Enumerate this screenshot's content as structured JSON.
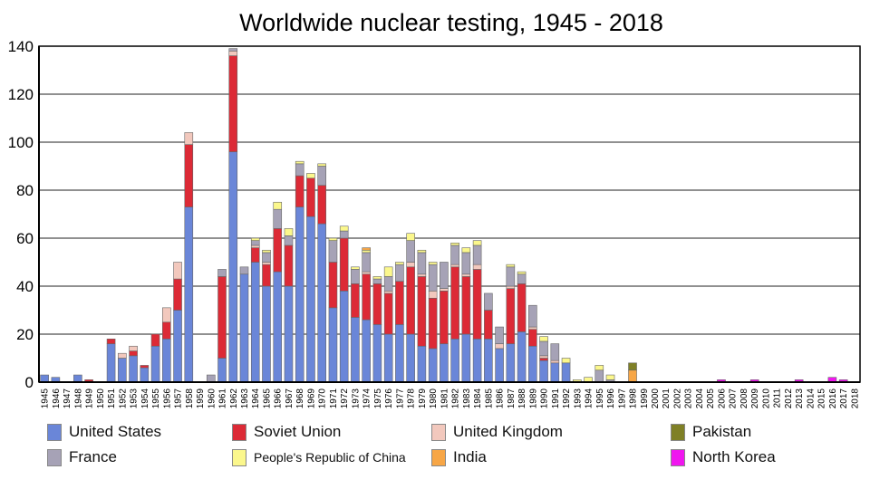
{
  "chart_data": {
    "type": "bar",
    "stacked": true,
    "title": "Worldwide nuclear testing, 1945 - 2018",
    "xlabel": "",
    "ylabel": "",
    "ylim": [
      0,
      140
    ],
    "yticks": [
      0,
      20,
      40,
      60,
      80,
      100,
      120,
      140
    ],
    "grid": true,
    "legend_position": "bottom",
    "categories": [
      "1945",
      "1946",
      "1947",
      "1948",
      "1949",
      "1950",
      "1951",
      "1952",
      "1953",
      "1954",
      "1955",
      "1956",
      "1957",
      "1958",
      "1959",
      "1960",
      "1961",
      "1962",
      "1963",
      "1964",
      "1965",
      "1966",
      "1967",
      "1968",
      "1969",
      "1970",
      "1971",
      "1972",
      "1973",
      "1974",
      "1975",
      "1976",
      "1977",
      "1978",
      "1979",
      "1980",
      "1981",
      "1982",
      "1983",
      "1984",
      "1985",
      "1986",
      "1987",
      "1988",
      "1989",
      "1990",
      "1991",
      "1992",
      "1993",
      "1994",
      "1995",
      "1996",
      "1997",
      "1998",
      "1999",
      "2000",
      "2001",
      "2002",
      "2003",
      "2004",
      "2005",
      "2006",
      "2007",
      "2008",
      "2009",
      "2010",
      "2011",
      "2012",
      "2013",
      "2014",
      "2015",
      "2016",
      "2017",
      "2018"
    ],
    "series": [
      {
        "name": "United States",
        "color": "#6a86d8",
        "values": [
          3,
          2,
          0,
          3,
          0,
          0,
          16,
          10,
          11,
          6,
          15,
          18,
          30,
          73,
          0,
          0,
          10,
          96,
          45,
          50,
          40,
          46,
          40,
          73,
          69,
          66,
          31,
          38,
          27,
          26,
          24,
          20,
          24,
          20,
          15,
          14,
          16,
          18,
          20,
          18,
          18,
          14,
          16,
          21,
          15,
          9,
          8,
          8,
          0,
          0,
          0,
          0,
          0,
          0,
          0,
          0,
          0,
          0,
          0,
          0,
          0,
          0,
          0,
          0,
          0,
          0,
          0,
          0,
          0,
          0,
          0,
          0,
          0,
          0
        ]
      },
      {
        "name": "Soviet Union",
        "color": "#dc2a36",
        "values": [
          0,
          0,
          0,
          0,
          1,
          0,
          2,
          0,
          2,
          1,
          5,
          7,
          13,
          26,
          0,
          0,
          34,
          40,
          0,
          6,
          9,
          18,
          17,
          13,
          16,
          16,
          19,
          22,
          14,
          19,
          17,
          17,
          18,
          28,
          29,
          21,
          22,
          30,
          24,
          29,
          12,
          0,
          23,
          20,
          7,
          1,
          0,
          0,
          0,
          0,
          0,
          0,
          0,
          0,
          0,
          0,
          0,
          0,
          0,
          0,
          0,
          0,
          0,
          0,
          0,
          0,
          0,
          0,
          0,
          0,
          0,
          0,
          0,
          0
        ]
      },
      {
        "name": "United Kingdom",
        "color": "#f2c8bd",
        "values": [
          0,
          0,
          0,
          0,
          0,
          0,
          0,
          2,
          2,
          0,
          0,
          6,
          7,
          5,
          0,
          0,
          0,
          2,
          0,
          1,
          1,
          0,
          0,
          0,
          0,
          0,
          0,
          0,
          0,
          1,
          0,
          1,
          0,
          2,
          1,
          3,
          1,
          1,
          1,
          2,
          0,
          2,
          1,
          0,
          1,
          1,
          1,
          0,
          0,
          0,
          0,
          0,
          0,
          0,
          0,
          0,
          0,
          0,
          0,
          0,
          0,
          0,
          0,
          0,
          0,
          0,
          0,
          0,
          0,
          0,
          0,
          0,
          0,
          0
        ]
      },
      {
        "name": "France",
        "color": "#a6a2b6",
        "values": [
          0,
          0,
          0,
          0,
          0,
          0,
          0,
          0,
          0,
          0,
          0,
          0,
          0,
          0,
          0,
          3,
          3,
          1,
          3,
          2,
          4,
          8,
          4,
          5,
          0,
          8,
          9,
          3,
          6,
          8,
          2,
          6,
          7,
          9,
          9,
          11,
          11,
          8,
          9,
          8,
          7,
          7,
          8,
          4,
          9,
          6,
          7,
          0,
          0,
          0,
          5,
          1,
          0,
          0,
          0,
          0,
          0,
          0,
          0,
          0,
          0,
          0,
          0,
          0,
          0,
          0,
          0,
          0,
          0,
          0,
          0,
          0,
          0,
          0
        ]
      },
      {
        "name": "People's Republic of China",
        "color": "#fbf78c",
        "values": [
          0,
          0,
          0,
          0,
          0,
          0,
          0,
          0,
          0,
          0,
          0,
          0,
          0,
          0,
          0,
          0,
          0,
          0,
          0,
          1,
          1,
          3,
          3,
          1,
          2,
          1,
          1,
          2,
          1,
          1,
          1,
          4,
          1,
          3,
          1,
          1,
          0,
          1,
          2,
          2,
          0,
          0,
          1,
          1,
          0,
          2,
          0,
          2,
          1,
          2,
          2,
          2,
          0,
          0,
          0,
          0,
          0,
          0,
          0,
          0,
          0,
          0,
          0,
          0,
          0,
          0,
          0,
          0,
          0,
          0,
          0,
          0,
          0,
          0
        ]
      },
      {
        "name": "India",
        "color": "#f7a646",
        "values": [
          0,
          0,
          0,
          0,
          0,
          0,
          0,
          0,
          0,
          0,
          0,
          0,
          0,
          0,
          0,
          0,
          0,
          0,
          0,
          0,
          0,
          0,
          0,
          0,
          0,
          0,
          0,
          0,
          0,
          1,
          0,
          0,
          0,
          0,
          0,
          0,
          0,
          0,
          0,
          0,
          0,
          0,
          0,
          0,
          0,
          0,
          0,
          0,
          0,
          0,
          0,
          0,
          0,
          5,
          0,
          0,
          0,
          0,
          0,
          0,
          0,
          0,
          0,
          0,
          0,
          0,
          0,
          0,
          0,
          0,
          0,
          0,
          0,
          0
        ]
      },
      {
        "name": "Pakistan",
        "color": "#7f8026",
        "values": [
          0,
          0,
          0,
          0,
          0,
          0,
          0,
          0,
          0,
          0,
          0,
          0,
          0,
          0,
          0,
          0,
          0,
          0,
          0,
          0,
          0,
          0,
          0,
          0,
          0,
          0,
          0,
          0,
          0,
          0,
          0,
          0,
          0,
          0,
          0,
          0,
          0,
          0,
          0,
          0,
          0,
          0,
          0,
          0,
          0,
          0,
          0,
          0,
          0,
          0,
          0,
          0,
          0,
          3,
          0,
          0,
          0,
          0,
          0,
          0,
          0,
          0,
          0,
          0,
          0,
          0,
          0,
          0,
          0,
          0,
          0,
          0,
          0,
          0
        ]
      },
      {
        "name": "North Korea",
        "color": "#f016ef",
        "values": [
          0,
          0,
          0,
          0,
          0,
          0,
          0,
          0,
          0,
          0,
          0,
          0,
          0,
          0,
          0,
          0,
          0,
          0,
          0,
          0,
          0,
          0,
          0,
          0,
          0,
          0,
          0,
          0,
          0,
          0,
          0,
          0,
          0,
          0,
          0,
          0,
          0,
          0,
          0,
          0,
          0,
          0,
          0,
          0,
          0,
          0,
          0,
          0,
          0,
          0,
          0,
          0,
          0,
          0,
          0,
          0,
          0,
          0,
          0,
          0,
          0,
          1,
          0,
          0,
          1,
          0,
          0,
          0,
          1,
          0,
          0,
          2,
          1,
          0
        ]
      }
    ]
  }
}
